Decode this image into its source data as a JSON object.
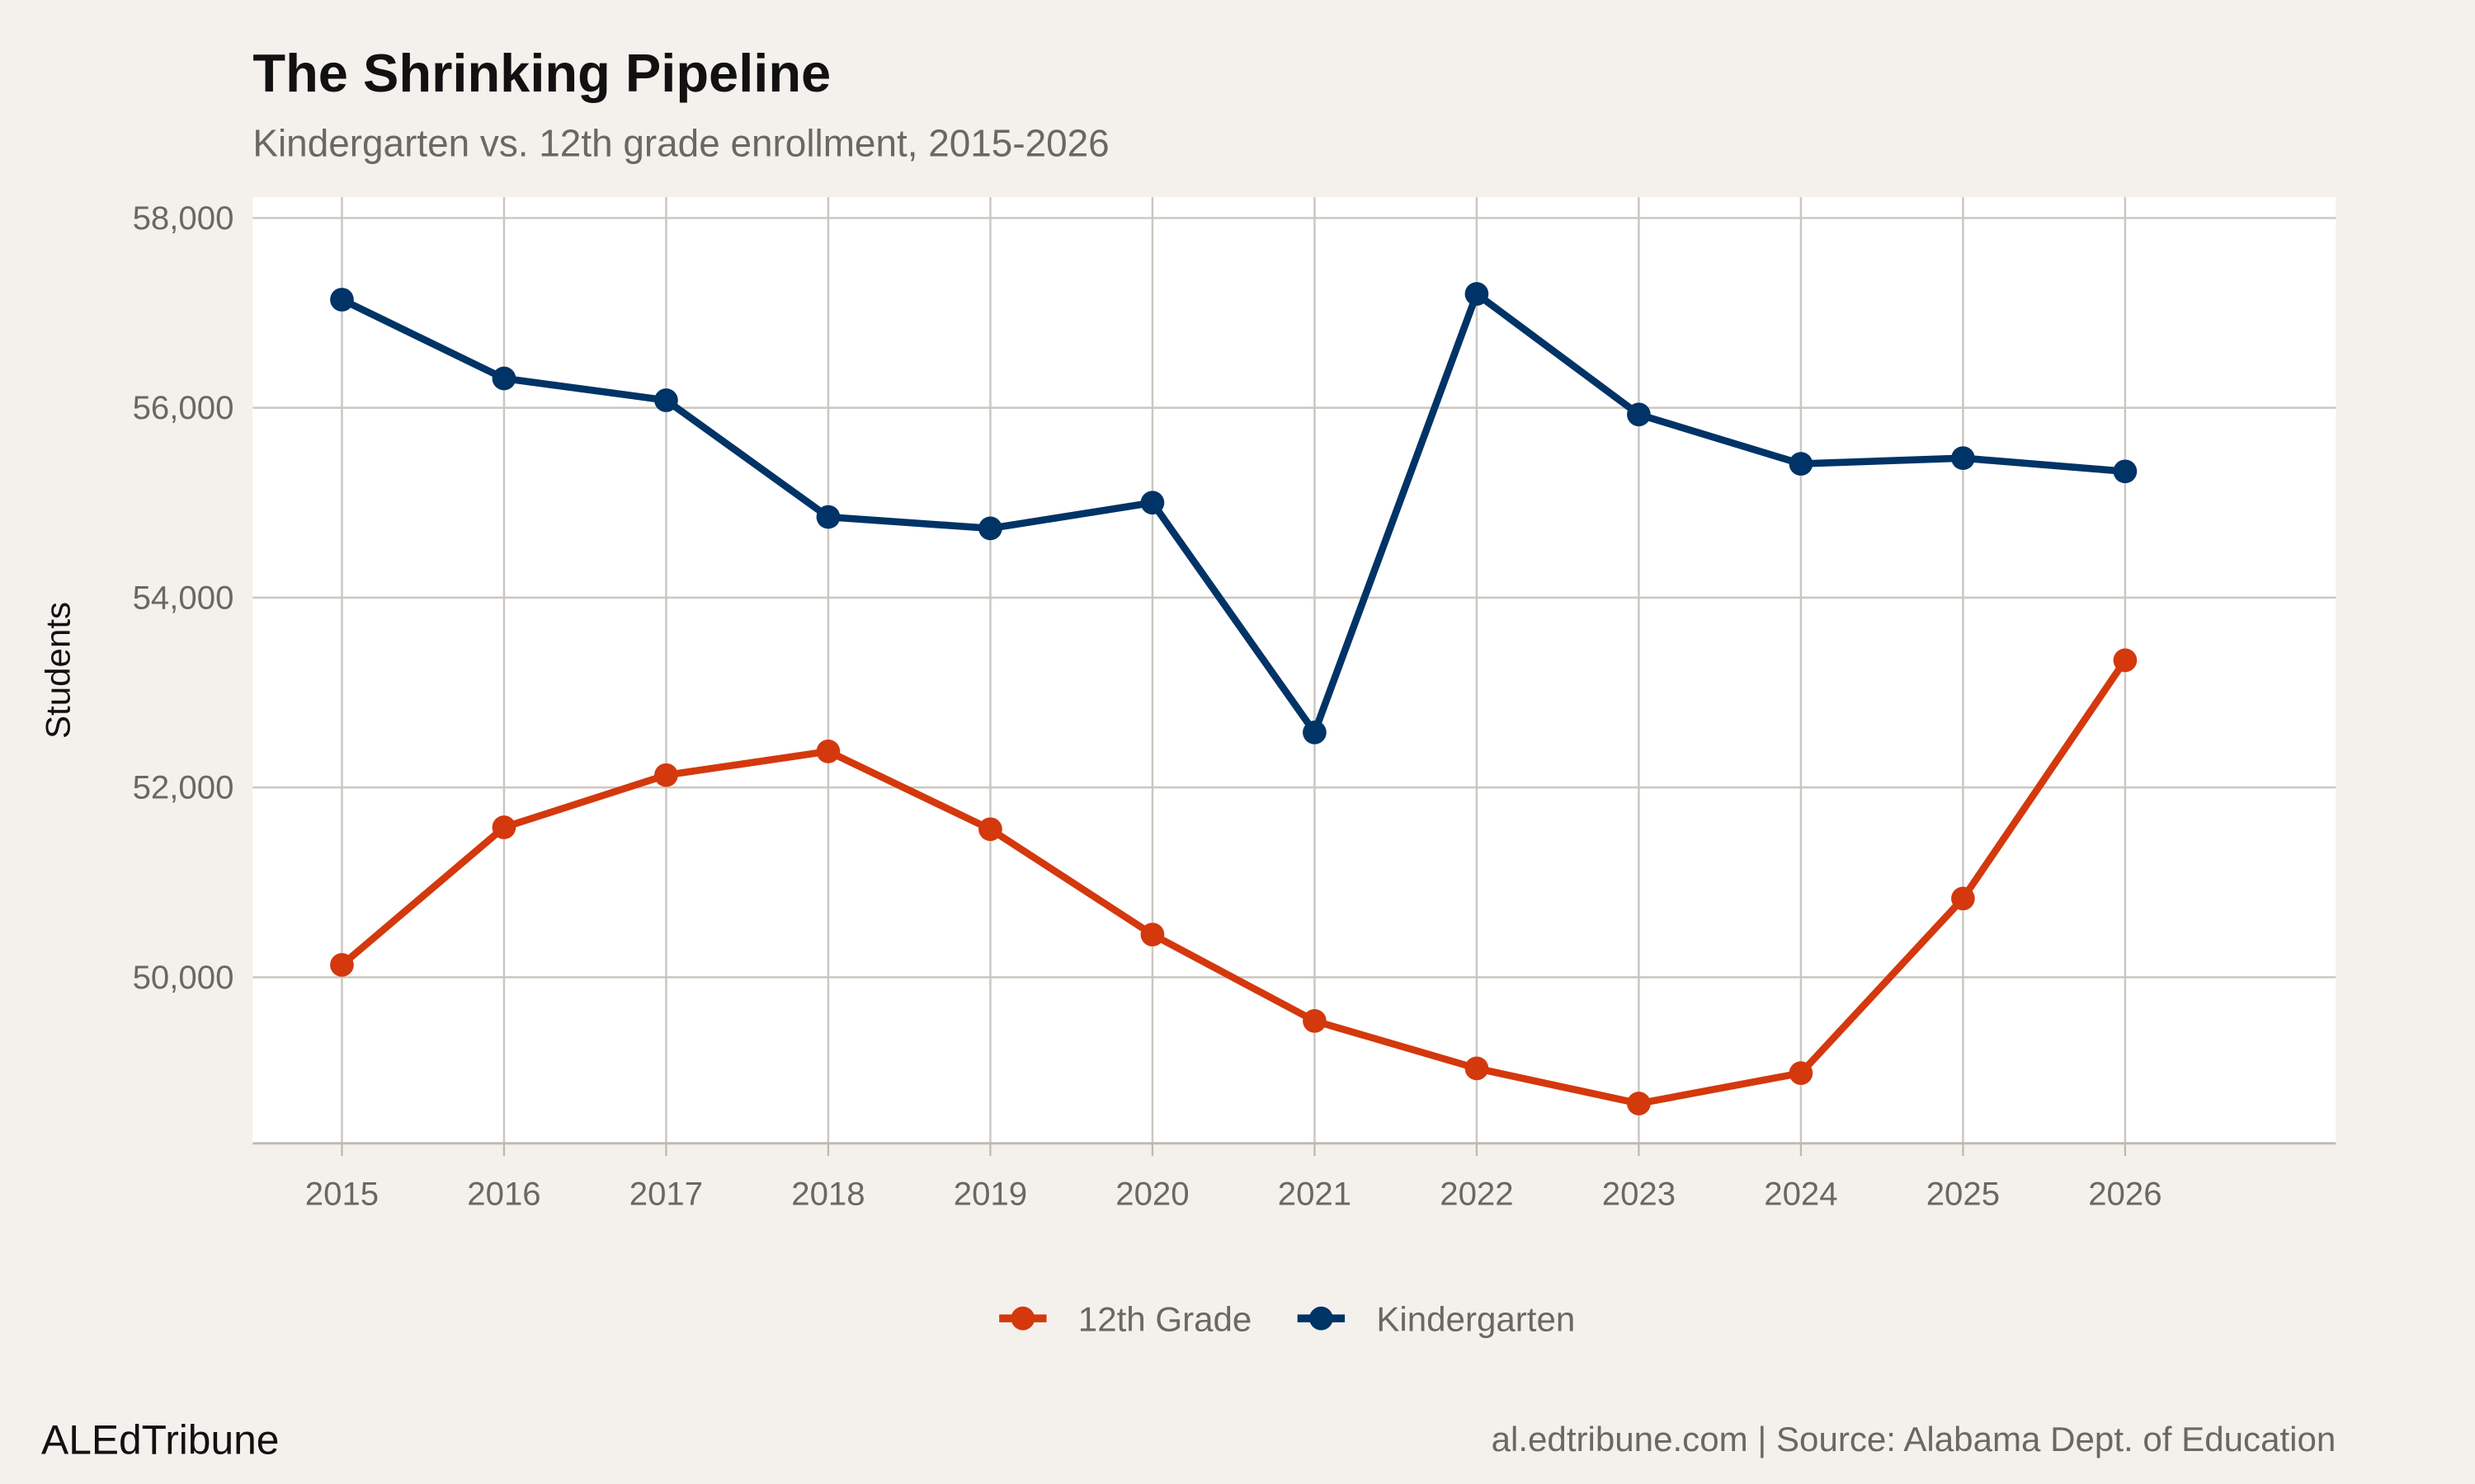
{
  "chart_data": {
    "type": "line",
    "title": "The Shrinking Pipeline",
    "subtitle": "Kindergarten vs. 12th grade enrollment, 2015-2026",
    "xlabel": "",
    "ylabel": "Students",
    "x": [
      2015,
      2016,
      2017,
      2018,
      2019,
      2020,
      2021,
      2022,
      2023,
      2024,
      2025,
      2026
    ],
    "x_tick_labels": [
      "2015",
      "2016",
      "2017",
      "2018",
      "2019",
      "2020",
      "2021",
      "2022",
      "2023",
      "2024",
      "2025",
      "2026"
    ],
    "y_ticks": [
      50000,
      52000,
      54000,
      56000,
      58000
    ],
    "y_tick_labels": [
      "50,000",
      "52,000",
      "54,000",
      "56,000",
      "58,000"
    ],
    "ylim": [
      48250,
      58220
    ],
    "xlim": [
      2014.45,
      2027.3
    ],
    "grid": true,
    "legend_position": "bottom",
    "series": [
      {
        "name": "12th Grade",
        "color": "#d4380d",
        "values": [
          50130,
          51580,
          52130,
          52380,
          51560,
          50450,
          49540,
          49040,
          48670,
          48990,
          50830,
          53340
        ]
      },
      {
        "name": "Kindergarten",
        "color": "#003366",
        "values": [
          57140,
          56310,
          56080,
          54850,
          54730,
          55000,
          52580,
          57200,
          55930,
          55410,
          55470,
          55330
        ]
      }
    ]
  },
  "footer": {
    "brand": "ALEdTribune",
    "caption": "al.edtribune.com | Source: Alabama Dept. of Education"
  },
  "colors": {
    "background": "#f4f1ec",
    "panel": "#ffffff",
    "grid": "#cbc7c0"
  }
}
